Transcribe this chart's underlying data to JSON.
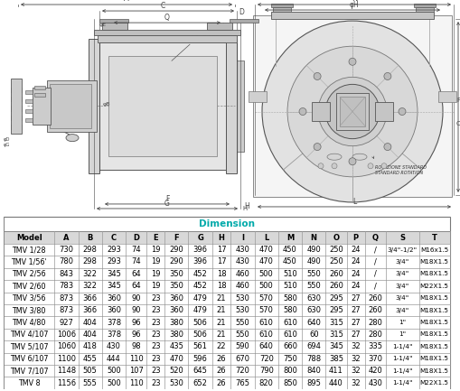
{
  "title": "Dimension",
  "title_color": "#00AAAA",
  "headers": [
    "Model",
    "A",
    "B",
    "C",
    "D",
    "E",
    "F",
    "G",
    "H",
    "I",
    "L",
    "M",
    "N",
    "O",
    "P",
    "Q",
    "S",
    "T"
  ],
  "rows": [
    [
      "TMV 1/28",
      "730",
      "298",
      "293",
      "74",
      "19",
      "290",
      "396",
      "17",
      "430",
      "470",
      "450",
      "490",
      "250",
      "24",
      "/",
      "3/4\"-1/2\"",
      "M16x1.5"
    ],
    [
      "TMV 1/56'",
      "780",
      "298",
      "293",
      "74",
      "19",
      "290",
      "396",
      "17",
      "430",
      "470",
      "450",
      "490",
      "250",
      "24",
      "/",
      "3/4\"",
      "M18X1.5"
    ],
    [
      "TMV 2/56",
      "843",
      "322",
      "345",
      "64",
      "19",
      "350",
      "452",
      "18",
      "460",
      "500",
      "510",
      "550",
      "260",
      "24",
      "/",
      "3/4\"",
      "M18X1.5"
    ],
    [
      "TMV 2/60",
      "783",
      "322",
      "345",
      "64",
      "19",
      "350",
      "452",
      "18",
      "460",
      "500",
      "510",
      "550",
      "260",
      "24",
      "/",
      "3/4\"",
      "M22X1.5"
    ],
    [
      "TMV 3/56",
      "873",
      "366",
      "360",
      "90",
      "23",
      "360",
      "479",
      "21",
      "530",
      "570",
      "580",
      "630",
      "295",
      "27",
      "260",
      "3/4\"",
      "M18X1.5"
    ],
    [
      "TMV 3/80",
      "873",
      "366",
      "360",
      "90",
      "23",
      "360",
      "479",
      "21",
      "530",
      "570",
      "580",
      "630",
      "295",
      "27",
      "260",
      "3/4\"",
      "M18X1.5"
    ],
    [
      "TMV 4/80",
      "927",
      "404",
      "378",
      "96",
      "23",
      "380",
      "506",
      "21",
      "550",
      "610",
      "610",
      "640",
      "315",
      "27",
      "280",
      "1\"",
      "M18X1.5"
    ],
    [
      "TMV 4/107",
      "1006",
      "404",
      "378",
      "96",
      "23",
      "380",
      "506",
      "21",
      "550",
      "610",
      "610",
      "60",
      "315",
      "27",
      "280",
      "1\"",
      "M18X1.5"
    ],
    [
      "TMV 5/107",
      "1060",
      "418",
      "430",
      "98",
      "23",
      "435",
      "561",
      "22",
      "590",
      "640",
      "660",
      "694",
      "345",
      "32",
      "335",
      "1-1/4\"",
      "M18X1.5"
    ],
    [
      "TMV 6/107",
      "1100",
      "455",
      "444",
      "110",
      "23",
      "470",
      "596",
      "26",
      "670",
      "720",
      "750",
      "788",
      "385",
      "32",
      "370",
      "1-1/4\"",
      "M18X1.5"
    ],
    [
      "TMV 7/107",
      "1148",
      "505",
      "500",
      "107",
      "23",
      "520",
      "645",
      "26",
      "720",
      "790",
      "800",
      "840",
      "411",
      "32",
      "420",
      "1-1/4\"",
      "M18X1.5"
    ],
    [
      "TMV 8",
      "1156",
      "555",
      "500",
      "110",
      "23",
      "530",
      "652",
      "26",
      "765",
      "820",
      "850",
      "895",
      "440",
      "32",
      "430",
      "1-1/4\"",
      "M22X1.5"
    ]
  ],
  "bg_color": "#FFFFFF",
  "table_header_bg": "#D8D8D8",
  "table_border_color": "#888888",
  "table_text_color": "#000000",
  "figure_bg": "#FFFFFF",
  "draw_area_bg": "#F0F0F0",
  "line_color": "#555555",
  "dim_line_color": "#444444"
}
